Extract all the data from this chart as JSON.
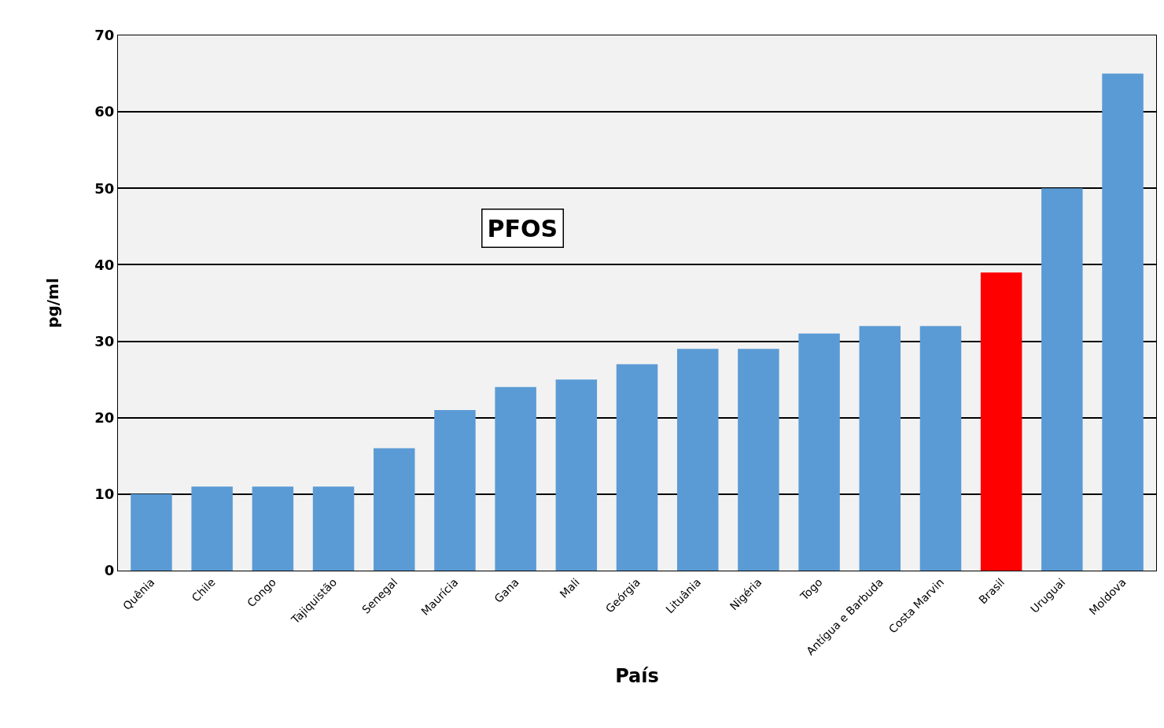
{
  "chart_data": {
    "type": "bar",
    "xlabel": "País",
    "ylabel": "pg/ml",
    "annotations": [
      "PFOS"
    ],
    "categories": [
      "Quênia",
      "Chile",
      "Congo",
      "Tajiquistão",
      "Senegal",
      "Maurícia",
      "Gana",
      "Mali",
      "Geórgia",
      "Lituânia",
      "Nigéria",
      "Togo",
      "Antígua e Barbuda",
      "Costa Marvin",
      "Brasil",
      "Uruguai",
      "Moldova"
    ],
    "values": [
      10,
      11,
      11,
      11,
      16,
      21,
      24,
      25,
      27,
      29,
      29,
      31,
      32,
      32,
      39,
      50,
      65
    ],
    "colors": [
      "#5b9bd5",
      "#5b9bd5",
      "#5b9bd5",
      "#5b9bd5",
      "#5b9bd5",
      "#5b9bd5",
      "#5b9bd5",
      "#5b9bd5",
      "#5b9bd5",
      "#5b9bd5",
      "#5b9bd5",
      "#5b9bd5",
      "#5b9bd5",
      "#5b9bd5",
      "#ff0000",
      "#5b9bd5",
      "#5b9bd5"
    ],
    "ylim": [
      0,
      70
    ],
    "yticks": [
      0,
      10,
      20,
      30,
      40,
      50,
      60,
      70
    ],
    "grid": "y"
  }
}
